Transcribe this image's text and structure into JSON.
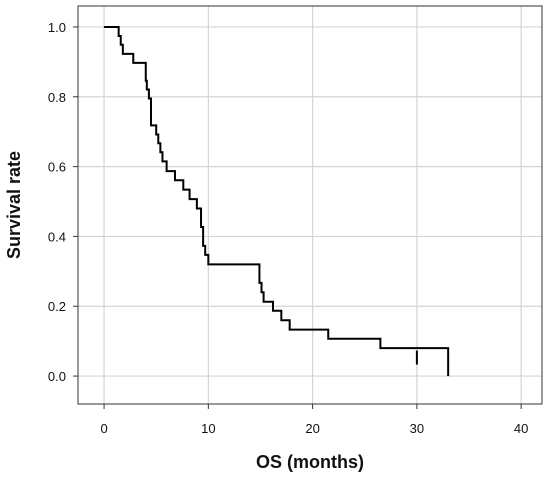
{
  "chart_data": {
    "type": "line",
    "step": true,
    "title": "",
    "xlabel": "OS (months)",
    "ylabel": "Survival rate",
    "xlim": [
      -2.5,
      42
    ],
    "ylim": [
      -0.08,
      1.06
    ],
    "xticks": [
      0,
      10,
      20,
      30,
      40
    ],
    "xtick_labels": [
      "0",
      "10",
      "20",
      "30",
      "40"
    ],
    "yticks": [
      0.0,
      0.2,
      0.4,
      0.6,
      0.8,
      1.0
    ],
    "ytick_labels": [
      "0.0",
      "0.2",
      "0.4",
      "0.6",
      "0.8",
      "1.0"
    ],
    "grid": true,
    "series": [
      {
        "color": "#000000",
        "x": [
          0,
          1.4,
          1.6,
          1.8,
          2.8,
          4.0,
          4.1,
          4.3,
          4.5,
          5.0,
          5.2,
          5.4,
          5.6,
          6.0,
          6.8,
          7.6,
          8.2,
          8.9,
          9.3,
          9.5,
          9.7,
          10.0,
          14.9,
          15.1,
          15.3,
          16.2,
          17.0,
          17.8,
          21.5,
          26.5,
          33.0
        ],
        "y": [
          1.0,
          0.974,
          0.949,
          0.923,
          0.897,
          0.846,
          0.821,
          0.795,
          0.718,
          0.692,
          0.667,
          0.641,
          0.615,
          0.587,
          0.561,
          0.534,
          0.507,
          0.48,
          0.427,
          0.373,
          0.347,
          0.32,
          0.267,
          0.24,
          0.213,
          0.187,
          0.16,
          0.133,
          0.107,
          0.08,
          0.053
        ]
      }
    ],
    "censored": [
      {
        "x": 30.0,
        "y": 0.053
      }
    ]
  }
}
